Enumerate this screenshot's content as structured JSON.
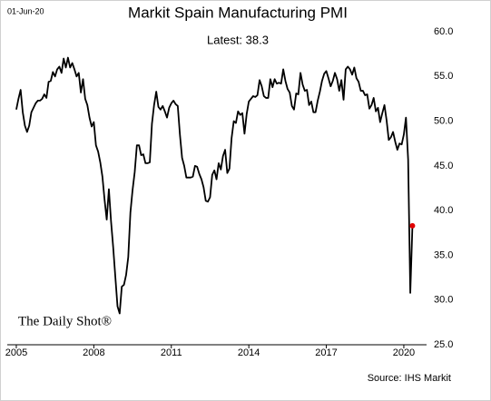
{
  "chart_data": {
    "type": "line",
    "title": "Markit Spain Manufacturing PMI",
    "date": "01-Jun-20",
    "annotation": "Latest:  38.3",
    "watermark": "The Daily Shot®",
    "source": "Source: IHS Markit",
    "color": "#000000",
    "last_point_color": "#e00000",
    "grid": false,
    "xlim": [
      2004.65,
      2020.88
    ],
    "xticks": [
      2005,
      2008,
      2011,
      2014,
      2017,
      2020
    ],
    "ylim": [
      25,
      60
    ],
    "yticks": [
      {
        "value": 25,
        "label": "25.0"
      },
      {
        "value": 30,
        "label": "30.0"
      },
      {
        "value": 35,
        "label": "35.0"
      },
      {
        "value": 40,
        "label": "40.0"
      },
      {
        "value": 45,
        "label": "45.0"
      },
      {
        "value": 50,
        "label": "50.0"
      },
      {
        "value": 55,
        "label": "55.0"
      },
      {
        "value": 60,
        "label": "60.0"
      }
    ],
    "x": [
      2005,
      2005.083,
      2005.167,
      2005.25,
      2005.333,
      2005.417,
      2005.5,
      2005.583,
      2005.667,
      2005.75,
      2005.833,
      2005.917,
      2006,
      2006.083,
      2006.167,
      2006.25,
      2006.333,
      2006.417,
      2006.5,
      2006.583,
      2006.667,
      2006.75,
      2006.833,
      2006.917,
      2007,
      2007.083,
      2007.167,
      2007.25,
      2007.333,
      2007.417,
      2007.5,
      2007.583,
      2007.667,
      2007.75,
      2007.833,
      2007.917,
      2008,
      2008.083,
      2008.167,
      2008.25,
      2008.333,
      2008.417,
      2008.5,
      2008.583,
      2008.667,
      2008.75,
      2008.833,
      2008.917,
      2009,
      2009.083,
      2009.167,
      2009.25,
      2009.333,
      2009.417,
      2009.5,
      2009.583,
      2009.667,
      2009.75,
      2009.833,
      2009.917,
      2010,
      2010.083,
      2010.167,
      2010.25,
      2010.333,
      2010.417,
      2010.5,
      2010.583,
      2010.667,
      2010.75,
      2010.833,
      2010.917,
      2011,
      2011.083,
      2011.167,
      2011.25,
      2011.333,
      2011.417,
      2011.5,
      2011.583,
      2011.667,
      2011.75,
      2011.833,
      2011.917,
      2012,
      2012.083,
      2012.167,
      2012.25,
      2012.333,
      2012.417,
      2012.5,
      2012.583,
      2012.667,
      2012.75,
      2012.833,
      2012.917,
      2013,
      2013.083,
      2013.167,
      2013.25,
      2013.333,
      2013.417,
      2013.5,
      2013.583,
      2013.667,
      2013.75,
      2013.833,
      2013.917,
      2014,
      2014.083,
      2014.167,
      2014.25,
      2014.333,
      2014.417,
      2014.5,
      2014.583,
      2014.667,
      2014.75,
      2014.833,
      2014.917,
      2015,
      2015.083,
      2015.167,
      2015.25,
      2015.333,
      2015.417,
      2015.5,
      2015.583,
      2015.667,
      2015.75,
      2015.833,
      2015.917,
      2016,
      2016.083,
      2016.167,
      2016.25,
      2016.333,
      2016.417,
      2016.5,
      2016.583,
      2016.667,
      2016.75,
      2016.833,
      2016.917,
      2017,
      2017.083,
      2017.167,
      2017.25,
      2017.333,
      2017.417,
      2017.5,
      2017.583,
      2017.667,
      2017.75,
      2017.833,
      2017.917,
      2018,
      2018.083,
      2018.167,
      2018.25,
      2018.333,
      2018.417,
      2018.5,
      2018.583,
      2018.667,
      2018.75,
      2018.833,
      2018.917,
      2019,
      2019.083,
      2019.167,
      2019.25,
      2019.333,
      2019.417,
      2019.5,
      2019.583,
      2019.667,
      2019.75,
      2019.833,
      2019.917,
      2020,
      2020.083,
      2020.167,
      2020.25,
      2020.333
    ],
    "values": [
      51.3,
      52.5,
      53.5,
      51.0,
      49.5,
      48.8,
      49.5,
      51.0,
      51.5,
      52.0,
      52.3,
      52.3,
      52.5,
      53.0,
      52.6,
      54.4,
      54.5,
      55.5,
      55.0,
      55.8,
      56.1,
      55.4,
      57.0,
      56.0,
      57.1,
      56.0,
      56.5,
      55.8,
      55.0,
      55.4,
      53.2,
      54.7,
      52.5,
      51.8,
      50.4,
      49.4,
      49.9,
      47.3,
      46.6,
      45.4,
      43.8,
      41.2,
      39.0,
      42.4,
      38.8,
      35.9,
      32.6,
      29.3,
      28.5,
      31.5,
      31.7,
      32.8,
      34.8,
      39.8,
      42.3,
      44.3,
      47.3,
      47.3,
      46.2,
      46.3,
      45.3,
      45.3,
      45.4,
      49.7,
      51.8,
      53.3,
      51.6,
      51.3,
      51.7,
      51.1,
      50.4,
      51.5,
      52.0,
      52.3,
      51.9,
      51.7,
      48.5,
      45.9,
      45.0,
      43.7,
      43.7,
      43.7,
      43.8,
      45.0,
      44.9,
      44.1,
      43.5,
      42.6,
      41.1,
      41.0,
      41.5,
      44.0,
      44.5,
      43.5,
      45.3,
      44.6,
      46.1,
      46.8,
      44.2,
      44.7,
      48.1,
      50.0,
      49.8,
      51.1,
      50.7,
      50.9,
      48.6,
      50.8,
      52.2,
      52.5,
      52.8,
      52.7,
      52.9,
      54.6,
      53.9,
      52.8,
      52.6,
      52.6,
      54.7,
      53.8,
      54.7,
      54.2,
      54.3,
      54.2,
      55.8,
      54.5,
      53.6,
      53.2,
      51.7,
      51.3,
      53.1,
      53.0,
      55.4,
      54.1,
      53.4,
      53.5,
      51.8,
      52.2,
      51.0,
      51.0,
      52.3,
      53.3,
      54.5,
      55.3,
      55.6,
      54.8,
      53.9,
      54.5,
      55.4,
      54.7,
      53.4,
      54.6,
      52.4,
      55.8,
      56.1,
      55.8,
      55.2,
      56.0,
      54.8,
      54.4,
      53.4,
      53.4,
      52.9,
      53.0,
      51.4,
      51.8,
      52.6,
      51.1,
      51.5,
      49.9,
      50.9,
      51.8,
      50.1,
      47.9,
      48.2,
      48.8,
      47.7,
      46.8,
      47.5,
      47.4,
      48.5,
      50.4,
      45.7,
      30.8,
      38.3
    ]
  }
}
